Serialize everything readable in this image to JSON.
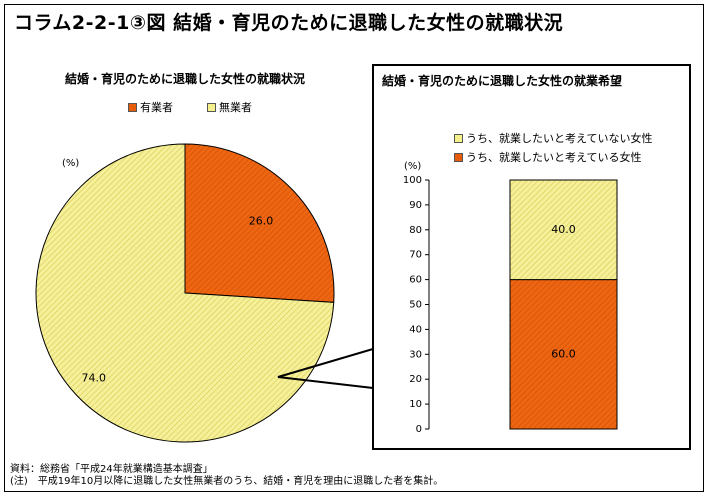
{
  "title": "コラム2-2-1③図 結婚・育児のために退職した女性の就職状況",
  "source_note": "資料：総務省「平成24年就業構造基本調査」",
  "footnote": "(注)　平成19年10月以降に退職した女性無業者のうち、結婚・育児を理由に退職した者を集計。",
  "colors": {
    "orange": "#e65c0a",
    "yellow": "#f5ef8c"
  },
  "chart_data": [
    {
      "type": "pie",
      "title": "結婚・育児のために退職した女性の就職状況",
      "unit_label": "(%)",
      "legend": [
        "有業者",
        "無業者"
      ],
      "slices": [
        {
          "name": "有業者",
          "value": 26.0,
          "label": "26.0"
        },
        {
          "name": "無業者",
          "value": 74.0,
          "label": "74.0"
        }
      ]
    },
    {
      "type": "bar",
      "stacked": true,
      "title": "結婚・育児のために退職した女性の就業希望",
      "unit_label": "(%)",
      "ylim": [
        0,
        100
      ],
      "yticks": [
        "0",
        "10",
        "20",
        "30",
        "40",
        "50",
        "60",
        "70",
        "80",
        "90",
        "100"
      ],
      "legend": [
        "うち、就業したいと考えていない女性",
        "うち、就業したいと考えている女性"
      ],
      "segments": [
        {
          "name": "うち、就業したいと考えている女性",
          "value": 60.0,
          "label": "60.0"
        },
        {
          "name": "うち、就業したいと考えていない女性",
          "value": 40.0,
          "label": "40.0"
        }
      ]
    }
  ]
}
